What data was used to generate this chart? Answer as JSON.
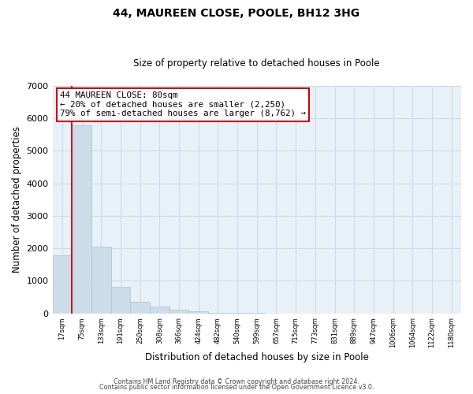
{
  "title": "44, MAUREEN CLOSE, POOLE, BH12 3HG",
  "subtitle": "Size of property relative to detached houses in Poole",
  "xlabel": "Distribution of detached houses by size in Poole",
  "ylabel": "Number of detached properties",
  "bar_labels": [
    "17sqm",
    "75sqm",
    "133sqm",
    "191sqm",
    "250sqm",
    "308sqm",
    "366sqm",
    "424sqm",
    "482sqm",
    "540sqm",
    "599sqm",
    "657sqm",
    "715sqm",
    "773sqm",
    "831sqm",
    "889sqm",
    "947sqm",
    "1006sqm",
    "1064sqm",
    "1122sqm",
    "1180sqm"
  ],
  "bar_values": [
    1780,
    5780,
    2060,
    820,
    360,
    215,
    110,
    55,
    25,
    10,
    5,
    0,
    0,
    0,
    0,
    0,
    0,
    0,
    0,
    0,
    0
  ],
  "bar_color": "#ccdce8",
  "bar_edge_color": "#a8c4d8",
  "marker_line_color": "#cc0000",
  "ylim": [
    0,
    7000
  ],
  "yticks": [
    0,
    1000,
    2000,
    3000,
    4000,
    5000,
    6000,
    7000
  ],
  "annotation_line1": "44 MAUREEN CLOSE: 80sqm",
  "annotation_line2": "← 20% of detached houses are smaller (2,250)",
  "annotation_line3": "79% of semi-detached houses are larger (8,762) →",
  "annotation_box_color": "#ffffff",
  "annotation_box_edge_color": "#cc0000",
  "footer_line1": "Contains HM Land Registry data © Crown copyright and database right 2024.",
  "footer_line2": "Contains public sector information licensed under the Open Government Licence v3.0.",
  "grid_color": "#ccdce8",
  "bg_color": "#e8f0f8"
}
